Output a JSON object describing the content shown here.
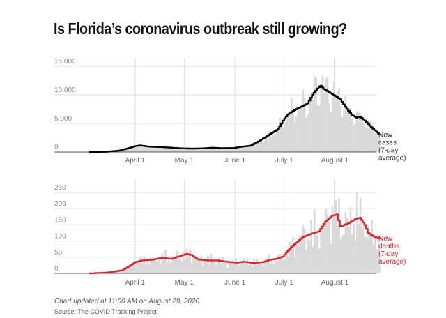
{
  "title": "Is Florida’s coronavirus outbreak still growing?",
  "note": "Chart updated at 11:00 AM on August 29, 2020.",
  "source": "Source: The COVID Tracking Project",
  "colors": {
    "bars": "#d9d9d9",
    "cases_line": "#000000",
    "deaths_line": "#d7282f",
    "grid": "#dddddd"
  },
  "chart_data": [
    {
      "type": "bar",
      "title": "New cases",
      "start_date": "2020-03-04",
      "xticks": [
        {
          "label": "April 1",
          "day": 28
        },
        {
          "label": "May 1",
          "day": 58
        },
        {
          "label": "June 1",
          "day": 89
        },
        {
          "label": "July 1",
          "day": 119
        },
        {
          "label": "August 1",
          "day": 150
        }
      ],
      "yticks": [
        {
          "label": "0",
          "value": 0
        },
        {
          "label": "5,000",
          "value": 5000
        },
        {
          "label": "10,000",
          "value": 10000
        },
        {
          "label": "15,000",
          "value": 15000
        }
      ],
      "ylim": [
        0,
        15500
      ],
      "annotation": [
        "New",
        "cases",
        "(7-day",
        "average)"
      ],
      "avg_knots": [
        [
          0,
          0
        ],
        [
          10,
          40
        ],
        [
          18,
          250
        ],
        [
          24,
          700
        ],
        [
          28,
          1050
        ],
        [
          31,
          1150
        ],
        [
          36,
          950
        ],
        [
          45,
          850
        ],
        [
          55,
          650
        ],
        [
          62,
          600
        ],
        [
          70,
          650
        ],
        [
          75,
          750
        ],
        [
          80,
          680
        ],
        [
          88,
          700
        ],
        [
          92,
          900
        ],
        [
          98,
          1100
        ],
        [
          104,
          2000
        ],
        [
          110,
          3100
        ],
        [
          115,
          4000
        ],
        [
          118,
          5500
        ],
        [
          121,
          6600
        ],
        [
          126,
          7500
        ],
        [
          131,
          8200
        ],
        [
          133,
          8500
        ],
        [
          136,
          10000
        ],
        [
          139,
          11100
        ],
        [
          141,
          11600
        ],
        [
          143,
          11000
        ],
        [
          146,
          10500
        ],
        [
          150,
          9800
        ],
        [
          153,
          9200
        ],
        [
          156,
          7900
        ],
        [
          160,
          6500
        ],
        [
          163,
          6000
        ],
        [
          165,
          6200
        ],
        [
          168,
          5500
        ],
        [
          171,
          4600
        ],
        [
          174,
          3800
        ],
        [
          177,
          3100
        ]
      ]
    },
    {
      "type": "bar",
      "title": "New deaths",
      "start_date": "2020-03-04",
      "xticks": [
        {
          "label": "April 1",
          "day": 28
        },
        {
          "label": "May 1",
          "day": 58
        },
        {
          "label": "June 1",
          "day": 89
        },
        {
          "label": "July 1",
          "day": 119
        },
        {
          "label": "August 1",
          "day": 150
        }
      ],
      "yticks": [
        {
          "label": "0",
          "value": 0
        },
        {
          "label": "50",
          "value": 50
        },
        {
          "label": "100",
          "value": 100
        },
        {
          "label": "150",
          "value": 150
        },
        {
          "label": "200",
          "value": 200
        },
        {
          "label": "250",
          "value": 250
        }
      ],
      "ylim": [
        0,
        265
      ],
      "annotation": [
        "New",
        "deaths",
        "(7-day",
        "average)"
      ],
      "avg_knots": [
        [
          0,
          0
        ],
        [
          12,
          3
        ],
        [
          20,
          10
        ],
        [
          25,
          25
        ],
        [
          28,
          35
        ],
        [
          32,
          40
        ],
        [
          38,
          42
        ],
        [
          44,
          48
        ],
        [
          50,
          45
        ],
        [
          56,
          55
        ],
        [
          59,
          60
        ],
        [
          62,
          57
        ],
        [
          66,
          43
        ],
        [
          72,
          40
        ],
        [
          78,
          40
        ],
        [
          85,
          35
        ],
        [
          90,
          33
        ],
        [
          94,
          36
        ],
        [
          100,
          32
        ],
        [
          106,
          35
        ],
        [
          110,
          42
        ],
        [
          114,
          45
        ],
        [
          118,
          52
        ],
        [
          121,
          70
        ],
        [
          125,
          90
        ],
        [
          130,
          112
        ],
        [
          135,
          122
        ],
        [
          140,
          130
        ],
        [
          144,
          160
        ],
        [
          148,
          178
        ],
        [
          151,
          182
        ],
        [
          153,
          145
        ],
        [
          158,
          155
        ],
        [
          162,
          167
        ],
        [
          165,
          172
        ],
        [
          168,
          150
        ],
        [
          170,
          125
        ],
        [
          174,
          112
        ],
        [
          177,
          110
        ]
      ]
    }
  ]
}
